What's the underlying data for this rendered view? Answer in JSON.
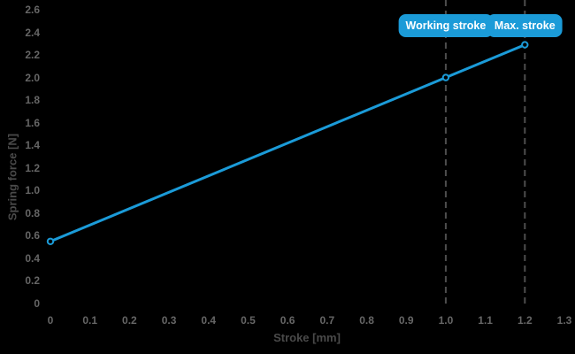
{
  "colors": {
    "background": "#000000",
    "line": "#1b9bd8",
    "marker_fill": "#000000",
    "badge_bg": "#1b9bd8",
    "badge_text": "#ffffff",
    "dashed_line": "#4d4d4d",
    "tick_label": "#666666",
    "axis_title": "#4a4a4a"
  },
  "chart_data": {
    "type": "line",
    "title": "",
    "xlabel": "Stroke [mm]",
    "ylabel": "Spring force [N]",
    "xlim": [
      0,
      1.3
    ],
    "ylim": [
      0,
      2.6
    ],
    "grid": false,
    "legend": "none",
    "x_ticks": [
      0,
      0.1,
      0.2,
      0.3,
      0.4,
      0.5,
      0.6,
      0.7,
      0.8,
      0.9,
      1.0,
      1.1,
      1.2,
      1.3
    ],
    "x_tick_labels": [
      "0",
      "0.1",
      "0.2",
      "0.3",
      "0.4",
      "0.5",
      "0.6",
      "0.7",
      "0.8",
      "0.9",
      "1.0",
      "1.1",
      "1.2",
      "1.3"
    ],
    "y_ticks": [
      0,
      0.2,
      0.4,
      0.6,
      0.8,
      1.0,
      1.2,
      1.4,
      1.6,
      1.8,
      2.0,
      2.2,
      2.4,
      2.6
    ],
    "y_tick_labels": [
      "0",
      "0.2",
      "0.4",
      "0.6",
      "0.8",
      "1.0",
      "1.2",
      "1.4",
      "1.6",
      "1.8",
      "2.0",
      "2.2",
      "2.4",
      "2.6"
    ],
    "series": [
      {
        "name": "spring-force",
        "marker": "open-circle",
        "x": [
          0,
          1.0,
          1.2
        ],
        "y": [
          0.55,
          2.0,
          2.29
        ]
      }
    ],
    "annotations": [
      {
        "label": "Working stroke",
        "x": 1.0
      },
      {
        "label": "Max. stroke",
        "x": 1.2
      }
    ]
  }
}
